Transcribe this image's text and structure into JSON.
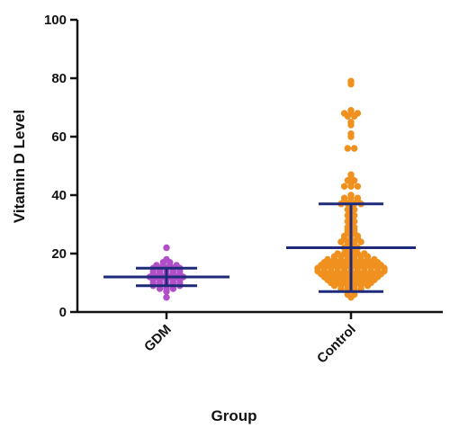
{
  "chart_data": {
    "type": "scatter",
    "subtype": "dot-plot with mean and SD error bars",
    "xlabel": "Group",
    "ylabel": "Vitamin D Level",
    "ylim": [
      0,
      100
    ],
    "yticks": [
      0,
      20,
      40,
      60,
      80,
      100
    ],
    "categories": [
      "GDM",
      "Control"
    ],
    "grid": false,
    "series": [
      {
        "name": "GDM",
        "color": "#b04fc8",
        "mean": 12,
        "sd_low": 9,
        "sd_high": 15,
        "values": [
          22,
          18,
          17,
          17,
          16,
          16,
          16,
          16,
          15,
          15,
          15,
          15,
          15,
          14,
          14,
          14,
          14,
          14,
          13,
          13,
          13,
          13,
          13,
          12,
          12,
          12,
          12,
          12,
          12,
          11,
          11,
          11,
          11,
          11,
          10,
          10,
          10,
          10,
          10,
          9,
          9,
          9,
          9,
          9,
          8,
          8,
          8,
          7,
          5
        ]
      },
      {
        "name": "Control",
        "color": "#f0901e",
        "mean": 22,
        "sd_low": 7,
        "sd_high": 37,
        "values": [
          79,
          78,
          69,
          68,
          68,
          68,
          67,
          67,
          65,
          64,
          61,
          60,
          56,
          56,
          47,
          46,
          45,
          45,
          44,
          43,
          43,
          43,
          40,
          39,
          39,
          39,
          38,
          38,
          38,
          37,
          37,
          37,
          37,
          36,
          35,
          35,
          34,
          33,
          33,
          32,
          31,
          31,
          30,
          29,
          29,
          28,
          28,
          27,
          27,
          26,
          26,
          26,
          25,
          25,
          25,
          24,
          24,
          24,
          24,
          23,
          23,
          22,
          22,
          22,
          21,
          21,
          20,
          20,
          20,
          20,
          20,
          19,
          19,
          19,
          19,
          19,
          19,
          18,
          18,
          18,
          18,
          18,
          18,
          18,
          18,
          17,
          17,
          17,
          17,
          17,
          17,
          17,
          17,
          17,
          16,
          16,
          16,
          16,
          16,
          16,
          16,
          16,
          16,
          16,
          15,
          15,
          15,
          15,
          15,
          15,
          15,
          15,
          15,
          15,
          15,
          14,
          14,
          14,
          14,
          14,
          14,
          14,
          14,
          14,
          14,
          14,
          13,
          13,
          13,
          13,
          13,
          13,
          13,
          13,
          13,
          13,
          12,
          12,
          12,
          12,
          12,
          12,
          12,
          12,
          12,
          11,
          11,
          11,
          11,
          11,
          11,
          11,
          11,
          10,
          10,
          10,
          10,
          10,
          10,
          10,
          9,
          9,
          9,
          9,
          9,
          9,
          8,
          8,
          8,
          8,
          7,
          7,
          6,
          6,
          5
        ]
      }
    ]
  },
  "colors": {
    "gdm_dots": "#b04fc8",
    "control_dots": "#f0901e",
    "mean_sd_bars": "#1f2a7a",
    "axes": "#111111"
  }
}
